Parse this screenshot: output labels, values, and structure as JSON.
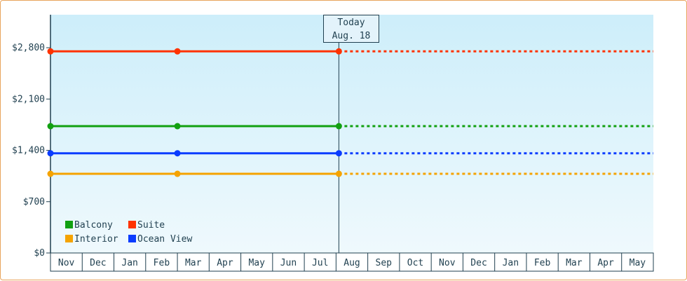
{
  "chart_data": {
    "type": "line",
    "y_tick_labels": [
      "$0",
      "$700",
      "$1,400",
      "$2,100",
      "$2,800"
    ],
    "y_ticks": [
      0,
      700,
      1400,
      2100,
      2800
    ],
    "ylim": [
      0,
      3250
    ],
    "x_categories": [
      "Nov",
      "Dec",
      "Jan",
      "Feb",
      "Mar",
      "Apr",
      "May",
      "Jun",
      "Jul",
      "Aug",
      "Sep",
      "Oct",
      "Nov",
      "Dec",
      "Jan",
      "Feb",
      "Mar",
      "Apr",
      "May"
    ],
    "today": {
      "label": "Today",
      "date": "Aug. 18"
    },
    "series": [
      {
        "name": "Suite",
        "color": "#ff3300",
        "actual_x": [
          "Nov",
          "Mar",
          "Aug"
        ],
        "actual_y": [
          2750,
          2750,
          2750
        ],
        "projected_y": 2750
      },
      {
        "name": "Balcony",
        "color": "#11a011",
        "actual_x": [
          "Nov",
          "Mar",
          "Aug"
        ],
        "actual_y": [
          1730,
          1730,
          1730
        ],
        "projected_y": 1730
      },
      {
        "name": "Ocean View",
        "color": "#0a3cff",
        "actual_x": [
          "Nov",
          "Mar",
          "Aug"
        ],
        "actual_y": [
          1360,
          1360,
          1360
        ],
        "projected_y": 1360
      },
      {
        "name": "Interior",
        "color": "#f5a300",
        "actual_x": [
          "Nov",
          "Mar",
          "Aug"
        ],
        "actual_y": [
          1080,
          1080,
          1080
        ],
        "projected_y": 1080
      }
    ],
    "legend": {
      "placement": "bottom-left",
      "items": [
        "Balcony",
        "Suite",
        "Interior",
        "Ocean View"
      ]
    },
    "grid": false
  }
}
